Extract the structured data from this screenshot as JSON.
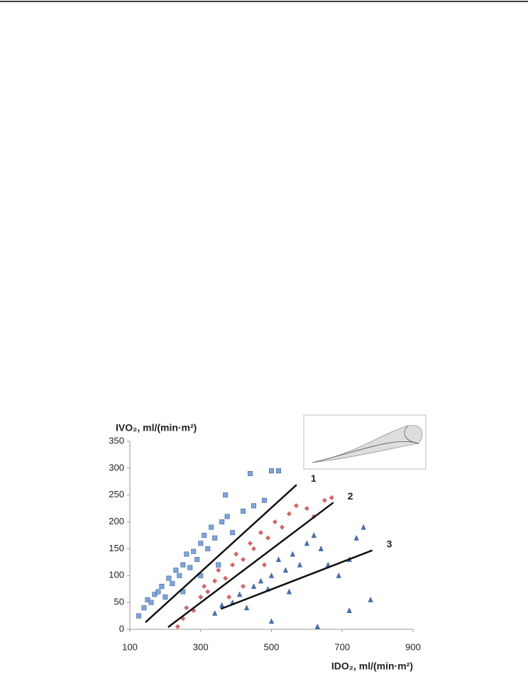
{
  "chart_data": {
    "type": "scatter",
    "ylabel": "IVO₂, ml/(min·m²)",
    "xlabel": "IDO₂, ml/(min·m²)",
    "xlim": [
      100,
      900
    ],
    "xticks": [
      100,
      300,
      500,
      700,
      900
    ],
    "ylim": [
      0,
      350
    ],
    "yticks": [
      0,
      50,
      100,
      150,
      200,
      250,
      300,
      350
    ],
    "grid": false,
    "series": [
      {
        "color": "#7ea6dc",
        "marker": "square",
        "x": [
          125,
          140,
          150,
          160,
          170,
          180,
          190,
          200,
          210,
          220,
          230,
          240,
          250,
          260,
          270,
          280,
          290,
          300,
          310,
          320,
          330,
          340,
          360,
          375,
          390,
          420,
          450,
          480,
          500,
          520,
          440,
          370,
          250,
          300,
          350
        ],
        "y": [
          25,
          40,
          55,
          50,
          65,
          70,
          80,
          60,
          95,
          85,
          110,
          100,
          120,
          140,
          115,
          145,
          130,
          160,
          175,
          150,
          190,
          170,
          200,
          210,
          180,
          220,
          230,
          240,
          295,
          295,
          290,
          250,
          70,
          100,
          120
        ]
      },
      {
        "color": "#d8686c",
        "marker": "diamond",
        "x": [
          235,
          250,
          260,
          280,
          300,
          310,
          320,
          340,
          350,
          370,
          390,
          400,
          420,
          440,
          450,
          470,
          490,
          510,
          530,
          550,
          570,
          600,
          620,
          650,
          670,
          480,
          420,
          380
        ],
        "y": [
          5,
          20,
          40,
          35,
          60,
          80,
          70,
          90,
          110,
          95,
          120,
          140,
          130,
          160,
          150,
          180,
          170,
          200,
          190,
          215,
          230,
          225,
          210,
          240,
          245,
          120,
          80,
          60
        ]
      },
      {
        "color": "#4a72b5",
        "marker": "triangle",
        "x": [
          340,
          360,
          390,
          410,
          430,
          450,
          470,
          490,
          500,
          520,
          540,
          560,
          580,
          600,
          620,
          640,
          660,
          690,
          720,
          740,
          760,
          780,
          720,
          630,
          500,
          550
        ],
        "y": [
          30,
          45,
          50,
          65,
          40,
          80,
          90,
          75,
          100,
          130,
          110,
          140,
          120,
          160,
          175,
          150,
          120,
          100,
          130,
          170,
          190,
          55,
          35,
          5,
          15,
          70
        ]
      }
    ],
    "lines": [
      {
        "label": "1",
        "x": [
          144,
          571
        ],
        "y": [
          13,
          269
        ]
      },
      {
        "label": "2",
        "x": [
          208,
          675
        ],
        "y": [
          4,
          236
        ]
      },
      {
        "label": "3",
        "x": [
          357,
          785
        ],
        "y": [
          38,
          147
        ]
      }
    ]
  }
}
